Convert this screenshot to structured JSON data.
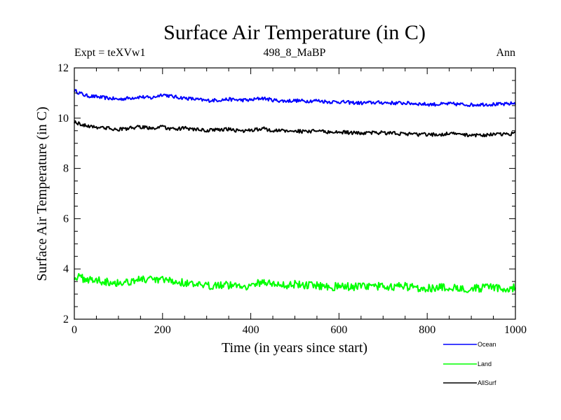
{
  "chart_data": {
    "type": "line",
    "title": "Surface Air Temperature (in C)",
    "subtitle_left": "Expt = teXVw1",
    "subtitle_center": "498_8_MaBP",
    "subtitle_right": "Ann",
    "xlabel": "Time (in years since start)",
    "ylabel": "Surface Air Temperature (in C)",
    "xlim": [
      0,
      1000
    ],
    "ylim": [
      2,
      12
    ],
    "x_ticks": [
      0,
      200,
      400,
      600,
      800,
      1000
    ],
    "x_tick_labels": [
      "0",
      "200",
      "400",
      "600",
      "800",
      "1000"
    ],
    "y_ticks": [
      2,
      4,
      6,
      8,
      10,
      12
    ],
    "y_tick_labels": [
      "2",
      "4",
      "6",
      "8",
      "10",
      "12"
    ],
    "grid": false,
    "legend_position": "bottom-right outside",
    "series": [
      {
        "name": "Ocean",
        "color": "#0000ff",
        "x": [
          0,
          25,
          50,
          75,
          100,
          125,
          150,
          175,
          200,
          225,
          250,
          275,
          300,
          325,
          350,
          375,
          400,
          425,
          450,
          475,
          500,
          525,
          550,
          575,
          600,
          625,
          650,
          675,
          700,
          725,
          750,
          775,
          800,
          825,
          850,
          875,
          900,
          925,
          950,
          975,
          1000
        ],
        "values": [
          11.1,
          10.9,
          10.85,
          10.8,
          10.75,
          10.8,
          10.85,
          10.8,
          10.95,
          10.85,
          10.8,
          10.75,
          10.7,
          10.72,
          10.75,
          10.72,
          10.72,
          10.8,
          10.72,
          10.68,
          10.7,
          10.68,
          10.7,
          10.65,
          10.65,
          10.62,
          10.6,
          10.62,
          10.62,
          10.6,
          10.6,
          10.58,
          10.55,
          10.55,
          10.57,
          10.55,
          10.53,
          10.55,
          10.55,
          10.55,
          10.6
        ]
      },
      {
        "name": "Land",
        "color": "#00ff00",
        "x": [
          0,
          25,
          50,
          75,
          100,
          125,
          150,
          175,
          200,
          225,
          250,
          275,
          300,
          325,
          350,
          375,
          400,
          425,
          450,
          475,
          500,
          525,
          550,
          575,
          600,
          625,
          650,
          675,
          700,
          725,
          750,
          775,
          800,
          825,
          850,
          875,
          900,
          925,
          950,
          975,
          1000
        ],
        "values": [
          3.7,
          3.6,
          3.55,
          3.5,
          3.45,
          3.5,
          3.6,
          3.55,
          3.55,
          3.5,
          3.45,
          3.35,
          3.3,
          3.4,
          3.35,
          3.35,
          3.3,
          3.5,
          3.4,
          3.35,
          3.4,
          3.35,
          3.35,
          3.3,
          3.3,
          3.3,
          3.3,
          3.3,
          3.3,
          3.3,
          3.3,
          3.25,
          3.25,
          3.25,
          3.25,
          3.25,
          3.2,
          3.25,
          3.25,
          3.2,
          3.25
        ]
      },
      {
        "name": "AllSurf",
        "color": "#000000",
        "x": [
          0,
          25,
          50,
          75,
          100,
          125,
          150,
          175,
          200,
          225,
          250,
          275,
          300,
          325,
          350,
          375,
          400,
          425,
          450,
          475,
          500,
          525,
          550,
          575,
          600,
          625,
          650,
          675,
          700,
          725,
          750,
          775,
          800,
          825,
          850,
          875,
          900,
          925,
          950,
          975,
          1000
        ],
        "values": [
          9.85,
          9.7,
          9.65,
          9.6,
          9.55,
          9.6,
          9.65,
          9.6,
          9.65,
          9.55,
          9.6,
          9.55,
          9.5,
          9.55,
          9.55,
          9.5,
          9.5,
          9.6,
          9.5,
          9.5,
          9.5,
          9.45,
          9.5,
          9.45,
          9.45,
          9.42,
          9.4,
          9.42,
          9.42,
          9.4,
          9.38,
          9.35,
          9.35,
          9.35,
          9.38,
          9.35,
          9.33,
          9.33,
          9.35,
          9.35,
          9.4
        ]
      }
    ]
  }
}
